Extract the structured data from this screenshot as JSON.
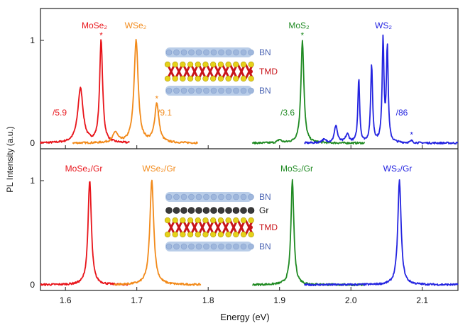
{
  "chart_data": {
    "type": "line",
    "xlabel": "Energy (eV)",
    "ylabel": "PL Intensity (a.u.)",
    "xlim": [
      1.565,
      2.15
    ],
    "ylim": [
      -0.03,
      1.3
    ],
    "x_ticks": [
      "1.6",
      "1.7",
      "1.8",
      "1.9",
      "2.0",
      "2.1"
    ],
    "y_ticks": [
      "0",
      "1"
    ],
    "grid": false,
    "colors": {
      "MoSe2": "#e8141a",
      "WSe2": "#f28a1a",
      "MoS2": "#1f8a22",
      "WS2": "#2424e0",
      "star": "#e8141a"
    },
    "panels": [
      {
        "name": "top",
        "series": [
          {
            "name": "MoSe2",
            "label": "MoSe₂",
            "scale_label": "/5.9",
            "color": "#e8141a",
            "x_range": [
              1.565,
              1.69
            ],
            "peaks": [
              {
                "center": 1.621,
                "height": 0.53,
                "width": 0.0045
              },
              {
                "center": 1.65,
                "height": 1.0,
                "width": 0.0025
              }
            ]
          },
          {
            "name": "WSe2",
            "label": "WSe₂",
            "scale_label": "/9.1",
            "color": "#f28a1a",
            "x_range": [
              1.61,
              1.785
            ],
            "peaks": [
              {
                "center": 1.67,
                "height": 0.1,
                "width": 0.004
              },
              {
                "center": 1.699,
                "height": 1.0,
                "width": 0.0035
              },
              {
                "center": 1.728,
                "height": 0.38,
                "width": 0.0035
              }
            ]
          },
          {
            "name": "MoS2",
            "label": "MoS₂",
            "scale_label": "/3.6",
            "color": "#1f8a22",
            "x_range": [
              1.862,
              2.02
            ],
            "peaks": [
              {
                "center": 1.9,
                "height": 0.03,
                "width": 0.003
              },
              {
                "center": 1.932,
                "height": 1.0,
                "width": 0.0025
              }
            ]
          },
          {
            "name": "WS2",
            "label": "WS₂",
            "scale_label": "/86",
            "color": "#2424e0",
            "x_range": [
              1.935,
              2.15
            ],
            "peaks": [
              {
                "center": 1.962,
                "height": 0.03,
                "width": 0.004
              },
              {
                "center": 1.979,
                "height": 0.17,
                "width": 0.0025
              },
              {
                "center": 1.995,
                "height": 0.08,
                "width": 0.003
              },
              {
                "center": 2.011,
                "height": 0.63,
                "width": 0.0015
              },
              {
                "center": 2.029,
                "height": 0.76,
                "width": 0.0016
              },
              {
                "center": 2.045,
                "height": 1.0,
                "width": 0.0015
              },
              {
                "center": 2.051,
                "height": 0.92,
                "width": 0.0015
              },
              {
                "center": 2.085,
                "height": 0.02,
                "width": 0.002
              }
            ]
          }
        ],
        "stars": [
          {
            "x": 1.65,
            "y": 1.05,
            "color": "#e8141a"
          },
          {
            "x": 1.728,
            "y": 0.43,
            "color": "#f28a1a"
          },
          {
            "x": 1.932,
            "y": 1.05,
            "color": "#1f8a22"
          },
          {
            "x": 2.085,
            "y": 0.08,
            "color": "#2424e0"
          }
        ],
        "inset_layers": [
          "BN",
          "TMD",
          "BN"
        ]
      },
      {
        "name": "bottom",
        "series": [
          {
            "name": "MoSe2/Gr",
            "label": "MoSe₂/Gr",
            "color": "#e8141a",
            "x_range": [
              1.565,
              1.688
            ],
            "peaks": [
              {
                "center": 1.634,
                "height": 1.0,
                "width": 0.0028
              }
            ]
          },
          {
            "name": "WSe2/Gr",
            "label": "WSe₂/Gr",
            "color": "#f28a1a",
            "x_range": [
              1.668,
              1.79
            ],
            "peaks": [
              {
                "center": 1.721,
                "height": 1.0,
                "width": 0.0033
              }
            ]
          },
          {
            "name": "MoS2/Gr",
            "label": "MoS₂/Gr",
            "color": "#1f8a22",
            "x_range": [
              1.862,
              2.02
            ],
            "peaks": [
              {
                "center": 1.918,
                "height": 1.0,
                "width": 0.0025
              }
            ]
          },
          {
            "name": "WS2/Gr",
            "label": "WS₂/Gr",
            "color": "#2424e0",
            "x_range": [
              1.935,
              2.15
            ],
            "peaks": [
              {
                "center": 2.068,
                "height": 1.0,
                "width": 0.0028
              }
            ]
          }
        ],
        "stars": [],
        "inset_layers": [
          "BN",
          "Gr",
          "TMD",
          "BN"
        ]
      }
    ]
  }
}
